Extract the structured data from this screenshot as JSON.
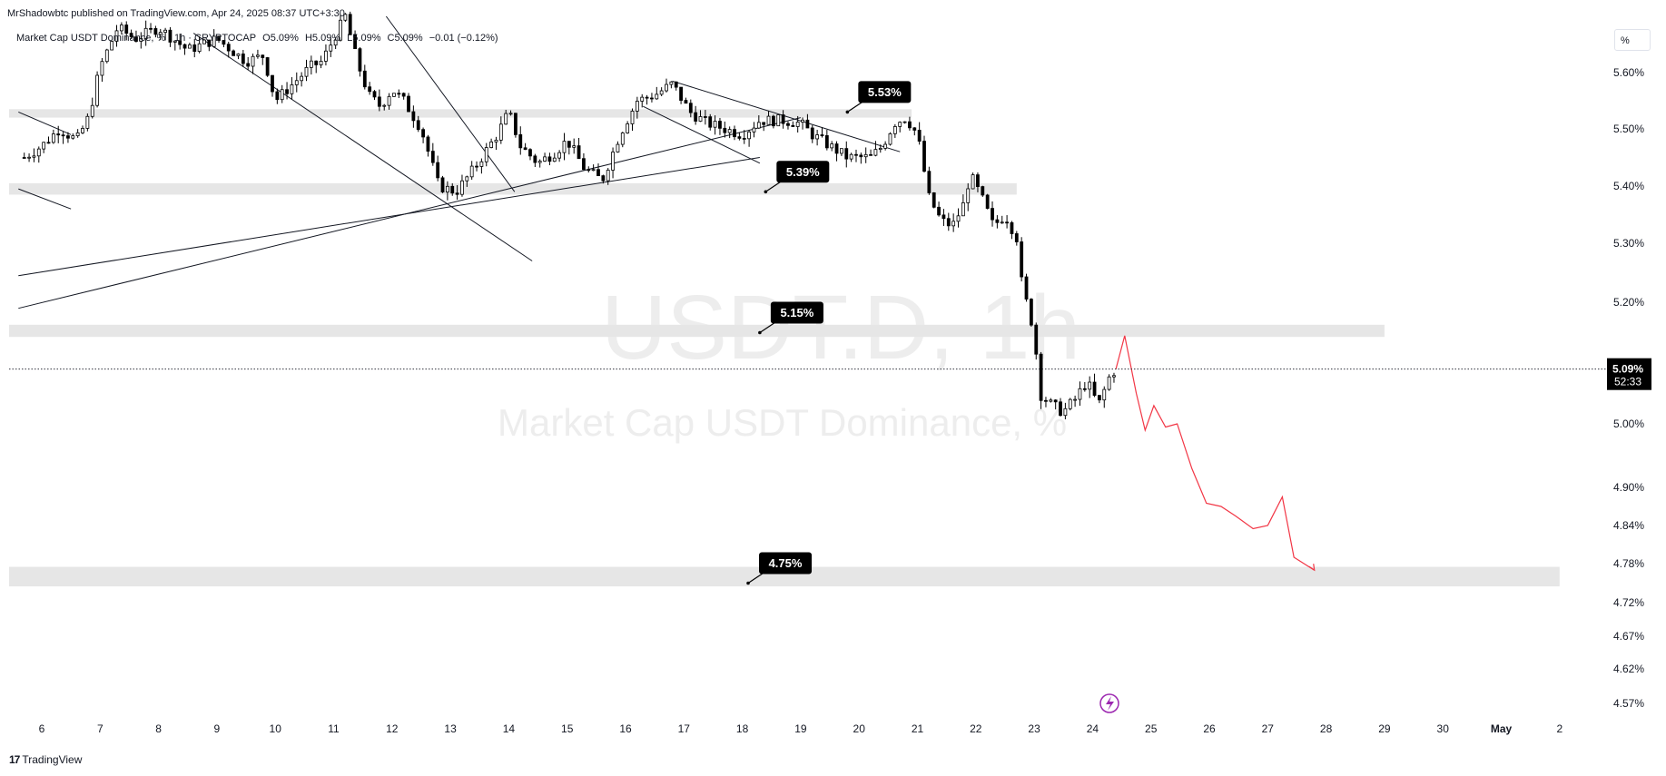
{
  "header": {
    "published": "MrShadowbtc published on TradingView.com, Apr 24, 2025 08:37 UTC+3:30"
  },
  "legend": {
    "symbol": "Market Cap USDT Dominance, % · 1h · CRYPTOCAP",
    "open": "O5.09%",
    "high": "H5.09%",
    "low": "L5.09%",
    "close": "C5.09%",
    "change": "−0.01 (−0.12%)"
  },
  "scale_button": "%",
  "watermark": {
    "symbol": "USDT.D, 1h",
    "name": "Market Cap USDT Dominance, %"
  },
  "footer": {
    "logo": "TradingView"
  },
  "colors": {
    "candle": "#000000",
    "projection": "#f23645",
    "zone": "#e6e6e6",
    "alert": "#9c27b0"
  },
  "icons": {
    "alert": "lightning-bolt-icon"
  },
  "chart_data": {
    "type": "candlestick",
    "y_unit": "%",
    "y_ticks": [
      "5.60%",
      "5.50%",
      "5.40%",
      "5.30%",
      "5.20%",
      "5.00%",
      "4.90%",
      "4.84%",
      "4.78%",
      "4.72%",
      "4.67%",
      "4.62%",
      "4.57%"
    ],
    "y_tick_values": [
      5.6,
      5.5,
      5.4,
      5.3,
      5.2,
      5.0,
      4.9,
      4.84,
      4.78,
      4.72,
      4.67,
      4.62,
      4.57
    ],
    "x_ticks": [
      "6",
      "7",
      "8",
      "9",
      "10",
      "11",
      "12",
      "13",
      "14",
      "15",
      "16",
      "17",
      "18",
      "19",
      "20",
      "21",
      "22",
      "23",
      "24",
      "25",
      "26",
      "27",
      "28",
      "29",
      "30",
      "May",
      "2"
    ],
    "x_bold": [
      "May"
    ],
    "last_price": {
      "value": 5.09,
      "label": "5.09%",
      "countdown": "52:33"
    },
    "zones": [
      {
        "y0": 5.52,
        "y1": 5.535,
        "x_end_day": 20.9
      },
      {
        "y0": 5.385,
        "y1": 5.405,
        "x_end_day": 22.7
      },
      {
        "y0": 5.143,
        "y1": 5.163,
        "x_end_day": 29.0
      },
      {
        "y0": 4.745,
        "y1": 4.775,
        "x_end_day": 32.0
      }
    ],
    "callouts": [
      {
        "label": "5.53%",
        "value": 5.53,
        "anchor_day": 19.8
      },
      {
        "label": "5.39%",
        "value": 5.39,
        "anchor_day": 18.4
      },
      {
        "label": "5.15%",
        "value": 5.15,
        "anchor_day": 18.3
      },
      {
        "label": "4.75%",
        "value": 4.75,
        "anchor_day": 18.1
      }
    ],
    "close_path": [
      [
        5.7,
        5.45
      ],
      [
        6.0,
        5.47
      ],
      [
        6.3,
        5.5
      ],
      [
        6.6,
        5.48
      ],
      [
        6.8,
        5.52
      ],
      [
        7.0,
        5.61
      ],
      [
        7.3,
        5.68
      ],
      [
        7.6,
        5.66
      ],
      [
        8.0,
        5.68
      ],
      [
        8.5,
        5.64
      ],
      [
        9.0,
        5.66
      ],
      [
        9.5,
        5.62
      ],
      [
        9.8,
        5.63
      ],
      [
        10.0,
        5.55
      ],
      [
        10.3,
        5.58
      ],
      [
        10.6,
        5.61
      ],
      [
        10.8,
        5.62
      ],
      [
        11.0,
        5.66
      ],
      [
        11.2,
        5.7
      ],
      [
        11.4,
        5.62
      ],
      [
        11.6,
        5.56
      ],
      [
        11.8,
        5.54
      ],
      [
        12.0,
        5.57
      ],
      [
        12.2,
        5.55
      ],
      [
        12.5,
        5.5
      ],
      [
        12.8,
        5.4
      ],
      [
        13.1,
        5.39
      ],
      [
        13.4,
        5.43
      ],
      [
        13.6,
        5.46
      ],
      [
        13.8,
        5.49
      ],
      [
        14.0,
        5.53
      ],
      [
        14.2,
        5.47
      ],
      [
        14.5,
        5.44
      ],
      [
        14.8,
        5.46
      ],
      [
        15.0,
        5.48
      ],
      [
        15.3,
        5.43
      ],
      [
        15.6,
        5.41
      ],
      [
        15.9,
        5.49
      ],
      [
        16.2,
        5.55
      ],
      [
        16.5,
        5.56
      ],
      [
        16.8,
        5.58
      ],
      [
        17.1,
        5.53
      ],
      [
        17.4,
        5.51
      ],
      [
        17.7,
        5.5
      ],
      [
        18.0,
        5.49
      ],
      [
        18.3,
        5.515
      ],
      [
        18.7,
        5.515
      ],
      [
        19.0,
        5.51
      ],
      [
        19.2,
        5.49
      ],
      [
        19.5,
        5.47
      ],
      [
        19.8,
        5.45
      ],
      [
        20.2,
        5.45
      ],
      [
        20.4,
        5.47
      ],
      [
        20.6,
        5.51
      ],
      [
        20.8,
        5.52
      ],
      [
        21.0,
        5.49
      ],
      [
        21.2,
        5.38
      ],
      [
        21.4,
        5.34
      ],
      [
        21.6,
        5.33
      ],
      [
        21.8,
        5.37
      ],
      [
        21.9,
        5.42
      ],
      [
        22.1,
        5.38
      ],
      [
        22.3,
        5.33
      ],
      [
        22.5,
        5.35
      ],
      [
        22.7,
        5.31
      ],
      [
        22.8,
        5.22
      ],
      [
        22.9,
        5.19
      ],
      [
        23.0,
        5.15
      ],
      [
        23.1,
        5.05
      ],
      [
        23.3,
        5.03
      ],
      [
        23.5,
        5.02
      ],
      [
        23.7,
        5.04
      ],
      [
        23.9,
        5.07
      ],
      [
        24.1,
        5.03
      ],
      [
        24.3,
        5.08
      ],
      [
        24.4,
        5.09
      ]
    ],
    "projection": [
      [
        24.4,
        5.09
      ],
      [
        24.55,
        5.145
      ],
      [
        24.75,
        5.05
      ],
      [
        24.9,
        4.99
      ],
      [
        25.05,
        5.03
      ],
      [
        25.25,
        4.995
      ],
      [
        25.45,
        5.0
      ],
      [
        25.7,
        4.93
      ],
      [
        25.95,
        4.875
      ],
      [
        26.2,
        4.87
      ],
      [
        26.45,
        4.855
      ],
      [
        26.75,
        4.835
      ],
      [
        27.0,
        4.84
      ],
      [
        27.25,
        4.885
      ],
      [
        27.45,
        4.79
      ],
      [
        27.8,
        4.77
      ]
    ],
    "trendlines": [
      {
        "from": [
          5.6,
          5.53
        ],
        "to": [
          6.5,
          5.49
        ]
      },
      {
        "from": [
          5.6,
          5.395
        ],
        "to": [
          6.5,
          5.36
        ]
      },
      {
        "from": [
          8.6,
          5.67
        ],
        "to": [
          14.4,
          5.27
        ]
      },
      {
        "from": [
          11.9,
          5.7
        ],
        "to": [
          14.1,
          5.39
        ]
      },
      {
        "from": [
          5.6,
          5.245
        ],
        "to": [
          18.3,
          5.45
        ]
      },
      {
        "from": [
          5.6,
          5.19
        ],
        "to": [
          19.0,
          5.52
        ]
      },
      {
        "from": [
          16.8,
          5.585
        ],
        "to": [
          20.7,
          5.46
        ]
      },
      {
        "from": [
          16.3,
          5.54
        ],
        "to": [
          18.3,
          5.44
        ]
      }
    ]
  }
}
